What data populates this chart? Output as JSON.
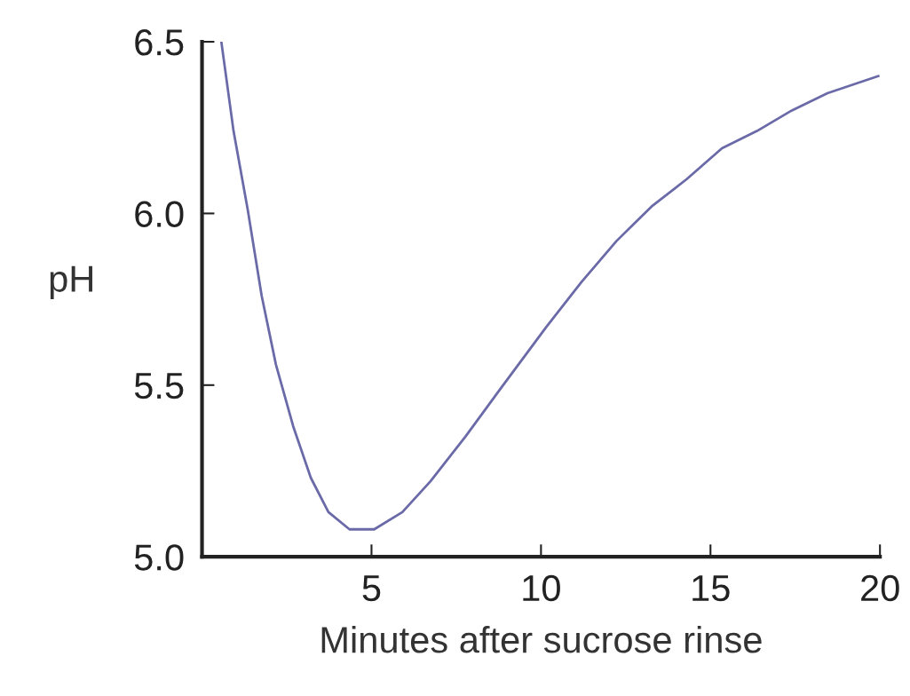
{
  "chart_data": {
    "type": "line",
    "xlabel": "Minutes after sucrose rinse",
    "ylabel": "pH",
    "x": [
      0.57,
      0.93,
      1.35,
      1.76,
      2.18,
      2.69,
      3.21,
      3.73,
      4.35,
      5.08,
      5.91,
      6.74,
      7.77,
      8.81,
      10.16,
      11.19,
      12.23,
      13.26,
      14.3,
      15.34,
      16.37,
      17.4,
      18.45,
      19.95
    ],
    "series": [
      {
        "color": "#6b6aa8",
        "values": [
          6.5,
          6.24,
          6.01,
          5.76,
          5.56,
          5.38,
          5.23,
          5.13,
          5.08,
          5.08,
          5.13,
          5.22,
          5.35,
          5.49,
          5.67,
          5.8,
          5.92,
          6.02,
          6.1,
          6.19,
          6.24,
          6.3,
          6.35,
          6.4
        ]
      }
    ],
    "xlim": [
      0,
      20
    ],
    "xticks": [
      5,
      10,
      15,
      20
    ],
    "ylim": [
      5.0,
      6.5
    ],
    "yticks": [
      {
        "value": 5.0,
        "label": "5.0"
      },
      {
        "value": 5.5,
        "label": "5.5"
      },
      {
        "value": 6.0,
        "label": "6.0"
      },
      {
        "value": 6.5,
        "label": "6.5"
      }
    ],
    "grid": false,
    "legend": false,
    "marker": "none",
    "line_style": "solid"
  }
}
